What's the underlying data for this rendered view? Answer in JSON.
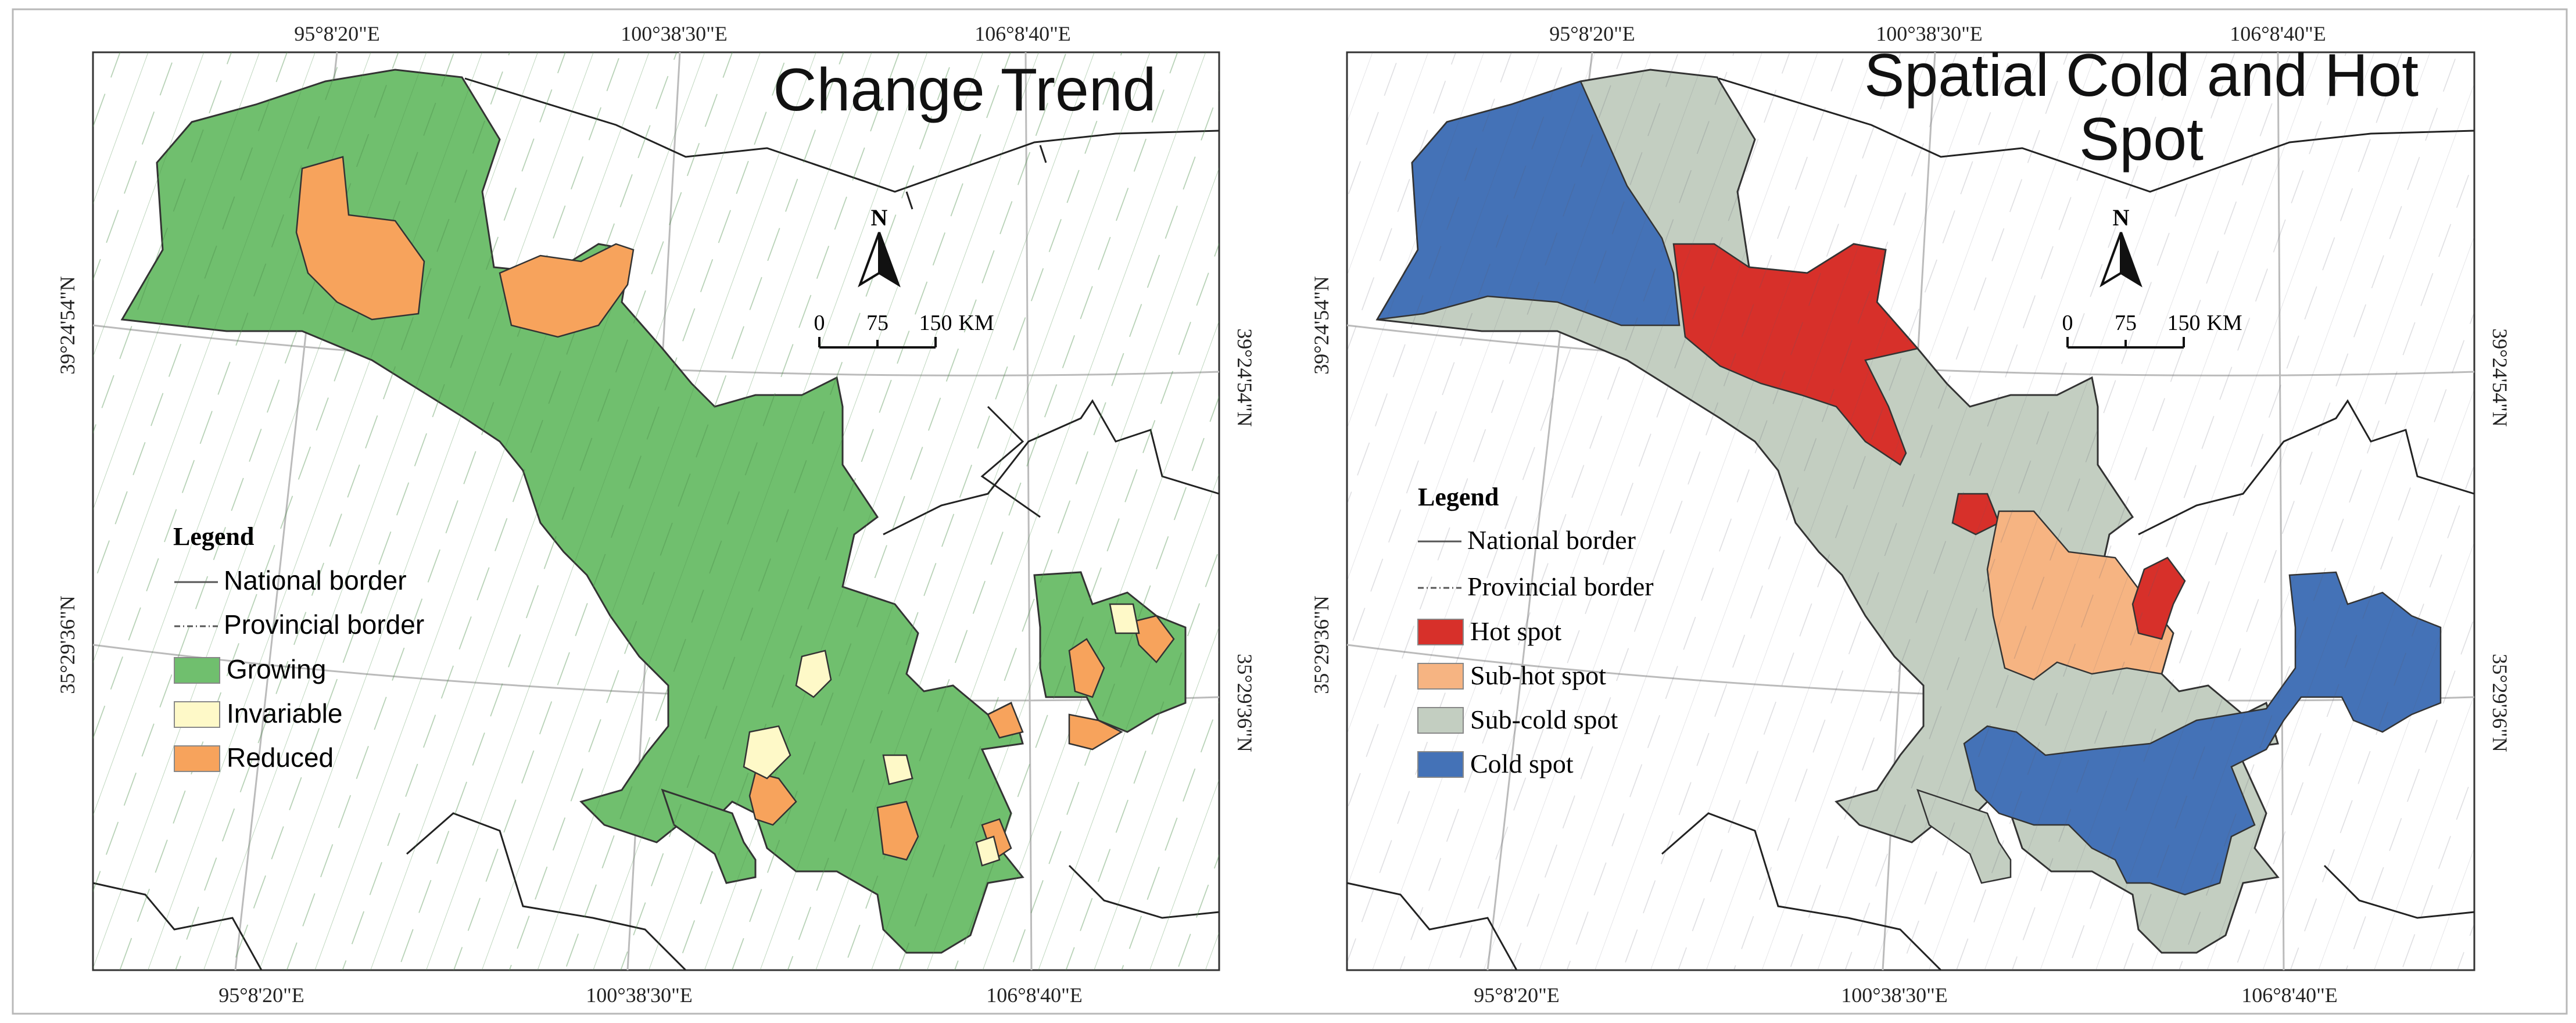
{
  "panels": [
    {
      "id": "change",
      "title_lines": [
        "Change Trend"
      ],
      "top_labels": [
        "95°8'20\"E",
        "100°38'30\"E",
        "106°8'40\"E"
      ],
      "bottom_labels": [
        "95°8'20\"E",
        "100°38'30\"E",
        "106°8'40\"E"
      ],
      "left_labels": [
        "39°24'54\"N",
        "35°29'36\"N"
      ],
      "right_labels": [
        "39°24'54\"N",
        "35°29'36\"N"
      ],
      "north": "N",
      "scale": [
        "0",
        "75",
        "150",
        "KM"
      ],
      "legend": {
        "title": "Legend",
        "line_items": [
          "National border",
          "Provincial border"
        ],
        "fill_items": [
          {
            "label": "Growing",
            "color": "#70BF6E"
          },
          {
            "label": "Invariable",
            "color": "#FEF9C8"
          },
          {
            "label": "Reduced",
            "color": "#F7A35C"
          }
        ]
      }
    },
    {
      "id": "spot",
      "title_lines": [
        "Spatial Cold and Hot",
        "Spot"
      ],
      "top_labels": [
        "95°8'20\"E",
        "100°38'30\"E",
        "106°8'40\"E"
      ],
      "bottom_labels": [
        "95°8'20\"E",
        "100°38'30\"E",
        "106°8'40\"E"
      ],
      "left_labels": [
        "39°24'54\"N",
        "35°29'36\"N"
      ],
      "right_labels": [
        "39°24'54\"N",
        "35°29'36\"N"
      ],
      "north": "N",
      "scale": [
        "0",
        "75",
        "150",
        "KM"
      ],
      "legend": {
        "title": "Legend",
        "line_items": [
          "National border",
          "Provincial border"
        ],
        "fill_items": [
          {
            "label": "Hot spot",
            "color": "#D7302A"
          },
          {
            "label": "Sub-hot spot",
            "color": "#F6B482"
          },
          {
            "label": "Sub-cold spot",
            "color": "#C3CEC1"
          },
          {
            "label": "Cold spot",
            "color": "#4472B7"
          }
        ]
      }
    }
  ]
}
